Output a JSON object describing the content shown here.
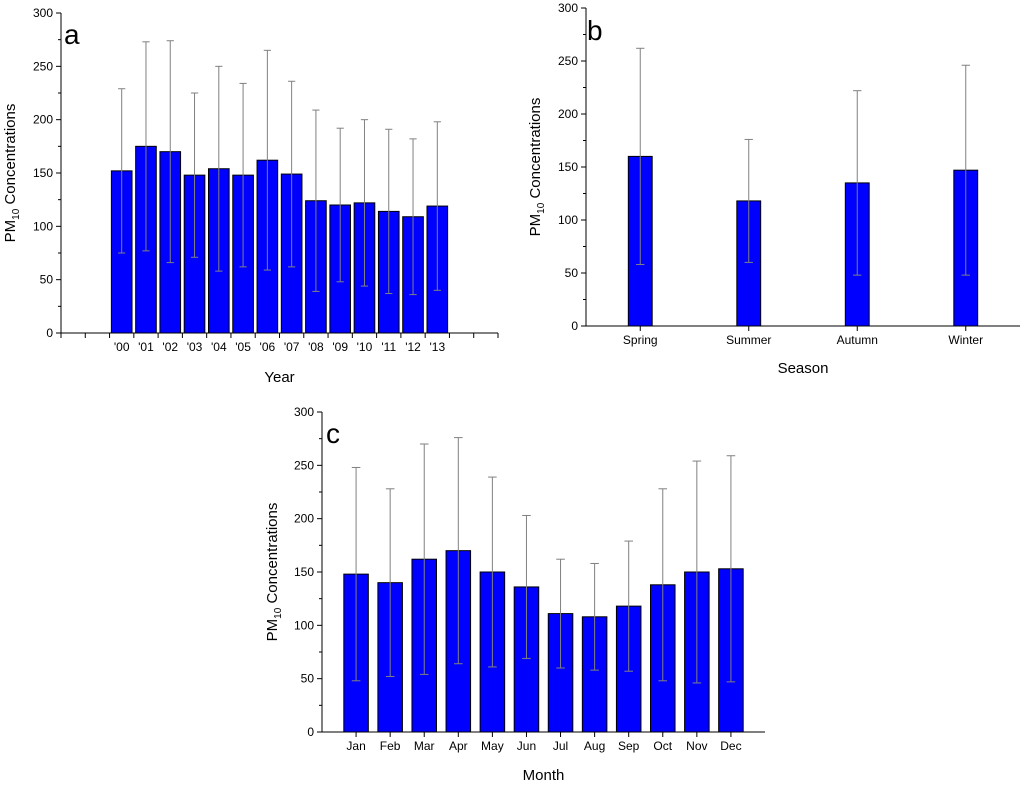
{
  "chart_data": [
    {
      "type": "bar",
      "panel_label": "a",
      "xlabel": "Year",
      "ylabel": {
        "main": "PM",
        "sub": "10",
        "rest": " Concentrations"
      },
      "ylim": [
        0,
        300
      ],
      "yticks": [
        0,
        50,
        100,
        150,
        200,
        250,
        300
      ],
      "categories": [
        "'00",
        "'01",
        "'02",
        "'03",
        "'04",
        "'05",
        "'06",
        "'07",
        "'08",
        "'09",
        "'10",
        "'11",
        "'12",
        "'13"
      ],
      "values": [
        152,
        175,
        170,
        148,
        154,
        148,
        162,
        149,
        124,
        120,
        122,
        114,
        109,
        119
      ],
      "error": [
        77,
        98,
        104,
        77,
        96,
        86,
        103,
        87,
        85,
        72,
        78,
        77,
        73,
        79
      ],
      "bar_color": "#0000ff",
      "error_color": "#808080"
    },
    {
      "type": "bar",
      "panel_label": "b",
      "xlabel": "Season",
      "ylabel": {
        "main": "PM",
        "sub": "10",
        "rest": " Concentrations"
      },
      "ylim": [
        0,
        300
      ],
      "yticks": [
        0,
        50,
        100,
        150,
        200,
        250,
        300
      ],
      "categories": [
        "Spring",
        "Summer",
        "Autumn",
        "Winter"
      ],
      "values": [
        160,
        118,
        135,
        147
      ],
      "error": [
        102,
        58,
        87,
        99
      ],
      "bar_color": "#0000ff",
      "error_color": "#808080"
    },
    {
      "type": "bar",
      "panel_label": "c",
      "xlabel": "Month",
      "ylabel": {
        "main": "PM",
        "sub": "10",
        "rest": " Concentrations"
      },
      "ylim": [
        0,
        300
      ],
      "yticks": [
        0,
        50,
        100,
        150,
        200,
        250,
        300
      ],
      "categories": [
        "Jan",
        "Feb",
        "Mar",
        "Apr",
        "May",
        "Jun",
        "Jul",
        "Aug",
        "Sep",
        "Oct",
        "Nov",
        "Dec"
      ],
      "values": [
        148,
        140,
        162,
        170,
        150,
        136,
        111,
        108,
        118,
        138,
        150,
        153
      ],
      "error": [
        100,
        88,
        108,
        106,
        89,
        67,
        51,
        50,
        61,
        90,
        104,
        106
      ],
      "bar_color": "#0000ff",
      "error_color": "#808080"
    }
  ]
}
